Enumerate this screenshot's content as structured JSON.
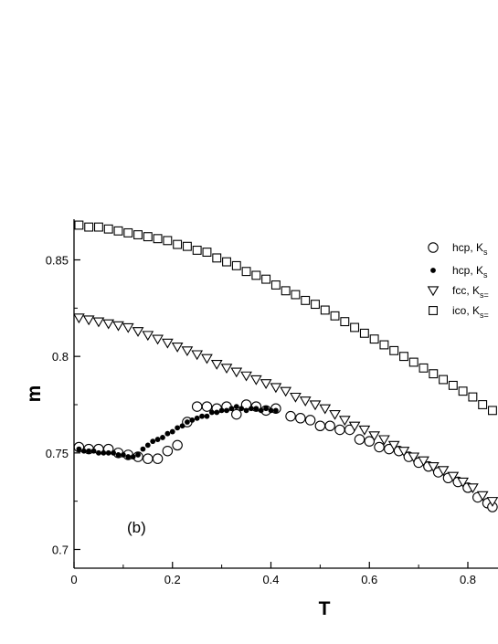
{
  "chart_data": {
    "type": "scatter",
    "title": "",
    "xlabel": "T",
    "ylabel": "m",
    "xlim": [
      0,
      0.85
    ],
    "ylim": [
      0.69,
      0.87
    ],
    "grid": false,
    "legend_position": "top-right",
    "x_ticks": [
      "0",
      "0.2",
      "0.4",
      "0.6",
      "0.8"
    ],
    "y_ticks": [
      "0.7",
      "0.75",
      "0.8",
      "0.85"
    ],
    "annotation": "(b)",
    "series": [
      {
        "name": "hcp, K",
        "marker": "open-circle",
        "points": [
          [
            0.01,
            0.753
          ],
          [
            0.03,
            0.752
          ],
          [
            0.05,
            0.752
          ],
          [
            0.07,
            0.752
          ],
          [
            0.09,
            0.75
          ],
          [
            0.11,
            0.749
          ],
          [
            0.13,
            0.748
          ],
          [
            0.15,
            0.747
          ],
          [
            0.17,
            0.747
          ],
          [
            0.19,
            0.751
          ],
          [
            0.21,
            0.754
          ],
          [
            0.23,
            0.766
          ],
          [
            0.25,
            0.774
          ],
          [
            0.27,
            0.774
          ],
          [
            0.29,
            0.773
          ],
          [
            0.31,
            0.774
          ],
          [
            0.33,
            0.77
          ],
          [
            0.35,
            0.775
          ],
          [
            0.37,
            0.774
          ],
          [
            0.39,
            0.772
          ],
          [
            0.41,
            0.773
          ],
          [
            0.44,
            0.769
          ],
          [
            0.46,
            0.768
          ],
          [
            0.48,
            0.767
          ],
          [
            0.5,
            0.764
          ],
          [
            0.52,
            0.764
          ],
          [
            0.54,
            0.762
          ],
          [
            0.56,
            0.762
          ],
          [
            0.58,
            0.757
          ],
          [
            0.6,
            0.756
          ],
          [
            0.62,
            0.753
          ],
          [
            0.64,
            0.752
          ],
          [
            0.66,
            0.751
          ],
          [
            0.68,
            0.748
          ],
          [
            0.7,
            0.745
          ],
          [
            0.72,
            0.743
          ],
          [
            0.74,
            0.74
          ],
          [
            0.76,
            0.737
          ],
          [
            0.78,
            0.735
          ],
          [
            0.8,
            0.732
          ],
          [
            0.82,
            0.727
          ],
          [
            0.84,
            0.724
          ],
          [
            0.85,
            0.722
          ]
        ]
      },
      {
        "name": "hcp, K",
        "marker": "filled-circle",
        "points": [
          [
            0.01,
            0.752
          ],
          [
            0.02,
            0.751
          ],
          [
            0.03,
            0.751
          ],
          [
            0.04,
            0.751
          ],
          [
            0.05,
            0.75
          ],
          [
            0.06,
            0.75
          ],
          [
            0.07,
            0.75
          ],
          [
            0.08,
            0.75
          ],
          [
            0.09,
            0.749
          ],
          [
            0.1,
            0.749
          ],
          [
            0.11,
            0.748
          ],
          [
            0.12,
            0.748
          ],
          [
            0.13,
            0.749
          ],
          [
            0.14,
            0.752
          ],
          [
            0.15,
            0.754
          ],
          [
            0.16,
            0.756
          ],
          [
            0.17,
            0.757
          ],
          [
            0.18,
            0.758
          ],
          [
            0.19,
            0.76
          ],
          [
            0.2,
            0.761
          ],
          [
            0.21,
            0.763
          ],
          [
            0.22,
            0.764
          ],
          [
            0.23,
            0.766
          ],
          [
            0.24,
            0.767
          ],
          [
            0.25,
            0.768
          ],
          [
            0.26,
            0.769
          ],
          [
            0.27,
            0.769
          ],
          [
            0.28,
            0.771
          ],
          [
            0.29,
            0.771
          ],
          [
            0.3,
            0.772
          ],
          [
            0.31,
            0.772
          ],
          [
            0.32,
            0.773
          ],
          [
            0.33,
            0.774
          ],
          [
            0.34,
            0.773
          ],
          [
            0.35,
            0.772
          ],
          [
            0.36,
            0.773
          ],
          [
            0.37,
            0.773
          ],
          [
            0.38,
            0.772
          ],
          [
            0.39,
            0.773
          ],
          [
            0.4,
            0.772
          ],
          [
            0.41,
            0.772
          ]
        ]
      },
      {
        "name": "fcc, K",
        "marker": "open-triangle-down",
        "points": [
          [
            0.01,
            0.82
          ],
          [
            0.03,
            0.819
          ],
          [
            0.05,
            0.818
          ],
          [
            0.07,
            0.817
          ],
          [
            0.09,
            0.816
          ],
          [
            0.11,
            0.815
          ],
          [
            0.13,
            0.813
          ],
          [
            0.15,
            0.811
          ],
          [
            0.17,
            0.809
          ],
          [
            0.19,
            0.807
          ],
          [
            0.21,
            0.805
          ],
          [
            0.23,
            0.803
          ],
          [
            0.25,
            0.801
          ],
          [
            0.27,
            0.799
          ],
          [
            0.29,
            0.796
          ],
          [
            0.31,
            0.794
          ],
          [
            0.33,
            0.792
          ],
          [
            0.35,
            0.79
          ],
          [
            0.37,
            0.788
          ],
          [
            0.39,
            0.786
          ],
          [
            0.41,
            0.784
          ],
          [
            0.43,
            0.782
          ],
          [
            0.45,
            0.779
          ],
          [
            0.47,
            0.777
          ],
          [
            0.49,
            0.775
          ],
          [
            0.51,
            0.773
          ],
          [
            0.53,
            0.77
          ],
          [
            0.55,
            0.767
          ],
          [
            0.57,
            0.764
          ],
          [
            0.59,
            0.762
          ],
          [
            0.61,
            0.759
          ],
          [
            0.63,
            0.757
          ],
          [
            0.65,
            0.754
          ],
          [
            0.67,
            0.751
          ],
          [
            0.69,
            0.748
          ],
          [
            0.71,
            0.746
          ],
          [
            0.73,
            0.743
          ],
          [
            0.75,
            0.741
          ],
          [
            0.77,
            0.738
          ],
          [
            0.79,
            0.735
          ],
          [
            0.81,
            0.732
          ],
          [
            0.83,
            0.728
          ],
          [
            0.85,
            0.725
          ]
        ]
      },
      {
        "name": "ico, K",
        "marker": "open-square",
        "points": [
          [
            0.01,
            0.868
          ],
          [
            0.03,
            0.867
          ],
          [
            0.05,
            0.867
          ],
          [
            0.07,
            0.866
          ],
          [
            0.09,
            0.865
          ],
          [
            0.11,
            0.864
          ],
          [
            0.13,
            0.863
          ],
          [
            0.15,
            0.862
          ],
          [
            0.17,
            0.861
          ],
          [
            0.19,
            0.86
          ],
          [
            0.21,
            0.858
          ],
          [
            0.23,
            0.857
          ],
          [
            0.25,
            0.855
          ],
          [
            0.27,
            0.854
          ],
          [
            0.29,
            0.851
          ],
          [
            0.31,
            0.849
          ],
          [
            0.33,
            0.847
          ],
          [
            0.35,
            0.844
          ],
          [
            0.37,
            0.842
          ],
          [
            0.39,
            0.84
          ],
          [
            0.41,
            0.837
          ],
          [
            0.43,
            0.834
          ],
          [
            0.45,
            0.832
          ],
          [
            0.47,
            0.829
          ],
          [
            0.49,
            0.827
          ],
          [
            0.51,
            0.824
          ],
          [
            0.53,
            0.821
          ],
          [
            0.55,
            0.818
          ],
          [
            0.57,
            0.815
          ],
          [
            0.59,
            0.812
          ],
          [
            0.61,
            0.809
          ],
          [
            0.63,
            0.806
          ],
          [
            0.65,
            0.803
          ],
          [
            0.67,
            0.8
          ],
          [
            0.69,
            0.797
          ],
          [
            0.71,
            0.794
          ],
          [
            0.73,
            0.791
          ],
          [
            0.75,
            0.788
          ],
          [
            0.77,
            0.785
          ],
          [
            0.79,
            0.782
          ],
          [
            0.81,
            0.779
          ],
          [
            0.83,
            0.775
          ],
          [
            0.85,
            0.772
          ]
        ]
      }
    ]
  }
}
